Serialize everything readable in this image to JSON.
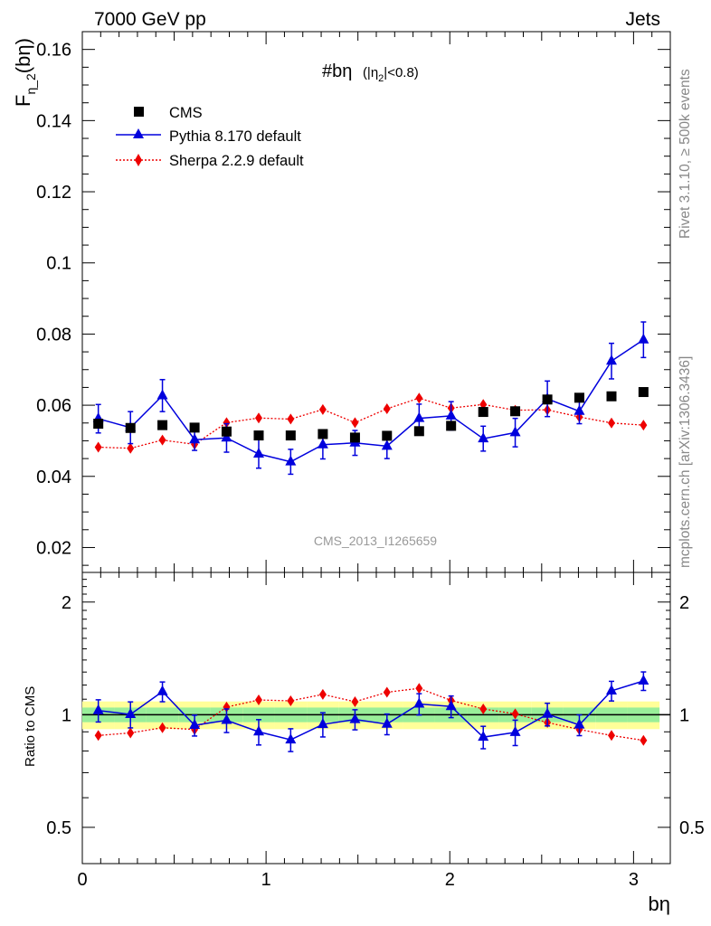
{
  "header": {
    "left": "7000 GeV pp",
    "right": "Jets"
  },
  "side_text": {
    "top": "Rivet 3.1.10, ≥ 500k events",
    "bottom": "mcplots.cern.ch [arXiv:1306.3436]"
  },
  "watermark": "CMS_2013_I1265659",
  "plot_title": {
    "main": "#bη",
    "sub": "(|η",
    "sub2": "2",
    "sub3": "|<0.8)"
  },
  "y_label_main": {
    "base": "F",
    "sub": "η_2",
    "rest": "(bη)"
  },
  "y_label_ratio": "Ratio to CMS",
  "x_label": "bη",
  "legend": [
    {
      "label": "CMS",
      "marker": "square",
      "color": "#000000"
    },
    {
      "label": "Pythia 8.170 default",
      "marker": "triangle",
      "color": "#0000dd"
    },
    {
      "label": "Sherpa 2.2.9 default",
      "marker": "diamond",
      "color": "#ee0000"
    }
  ],
  "chart_data": {
    "type": "scatter",
    "x": [
      0.087,
      0.262,
      0.436,
      0.611,
      0.785,
      0.96,
      1.134,
      1.309,
      1.484,
      1.658,
      1.833,
      2.007,
      2.182,
      2.356,
      2.531,
      2.705,
      2.88,
      3.054
    ],
    "series": [
      {
        "name": "CMS",
        "color": "#000000",
        "values": [
          0.0548,
          0.0536,
          0.0544,
          0.0537,
          0.0526,
          0.0515,
          0.0515,
          0.0519,
          0.0509,
          0.0514,
          0.0527,
          0.0542,
          0.0581,
          0.0583,
          0.0616,
          0.0621,
          0.0625,
          0.0637
        ]
      },
      {
        "name": "Pythia 8.170 default",
        "color": "#0000dd",
        "values": [
          0.0562,
          0.0537,
          0.0627,
          0.0503,
          0.0508,
          0.0463,
          0.0441,
          0.0489,
          0.0494,
          0.0485,
          0.0563,
          0.057,
          0.0506,
          0.0523,
          0.0618,
          0.0583,
          0.0724,
          0.0784
        ],
        "errors": [
          0.004,
          0.0045,
          0.0045,
          0.003,
          0.004,
          0.004,
          0.0035,
          0.004,
          0.0035,
          0.0035,
          0.004,
          0.004,
          0.0035,
          0.004,
          0.005,
          0.0035,
          0.005,
          0.005
        ]
      },
      {
        "name": "Sherpa 2.2.9 default",
        "color": "#ee0000",
        "values": [
          0.0482,
          0.0479,
          0.0502,
          0.049,
          0.0551,
          0.0564,
          0.0561,
          0.0588,
          0.0551,
          0.059,
          0.062,
          0.0592,
          0.0602,
          0.0586,
          0.0587,
          0.0567,
          0.055,
          0.0544
        ],
        "errors": [
          0.0012,
          0.0012,
          0.0012,
          0.0012,
          0.0012,
          0.0012,
          0.0012,
          0.0012,
          0.0012,
          0.0012,
          0.0012,
          0.0012,
          0.0012,
          0.0012,
          0.0012,
          0.0012,
          0.0012,
          0.0012
        ]
      }
    ],
    "ratio": {
      "pythia": [
        1.026,
        1.002,
        1.153,
        0.937,
        0.966,
        0.9,
        0.857,
        0.942,
        0.971,
        0.944,
        1.068,
        1.052,
        0.871,
        0.897,
        1.003,
        0.939,
        1.158,
        1.231
      ],
      "pythia_err": [
        0.07,
        0.08,
        0.07,
        0.06,
        0.07,
        0.07,
        0.06,
        0.07,
        0.06,
        0.06,
        0.07,
        0.07,
        0.06,
        0.07,
        0.07,
        0.06,
        0.07,
        0.07
      ],
      "sherpa": [
        0.88,
        0.894,
        0.923,
        0.913,
        1.048,
        1.095,
        1.089,
        1.133,
        1.083,
        1.148,
        1.176,
        1.092,
        1.036,
        1.005,
        0.953,
        0.913,
        0.88,
        0.854
      ],
      "sherpa_err": [
        0.02,
        0.02,
        0.02,
        0.02,
        0.02,
        0.02,
        0.02,
        0.02,
        0.02,
        0.02,
        0.02,
        0.02,
        0.02,
        0.02,
        0.02,
        0.02,
        0.02,
        0.02
      ],
      "band_stat": 0.045,
      "band_total": 0.085
    },
    "xlim": [
      0,
      3.2
    ],
    "ylim_main": [
      0.013,
      0.165
    ],
    "ylim_ratio": [
      0.4,
      2.4
    ],
    "yticks_main": [
      "0.02",
      "0.04",
      "0.06",
      "0.08",
      "0.1",
      "0.12",
      "0.14",
      "0.16"
    ],
    "xticks": [
      "0",
      "1",
      "2",
      "3"
    ],
    "ratio_ticks": [
      "0.5",
      "1",
      "2"
    ],
    "ratio_ticks_right": [
      "0.5",
      "1",
      "2"
    ]
  }
}
